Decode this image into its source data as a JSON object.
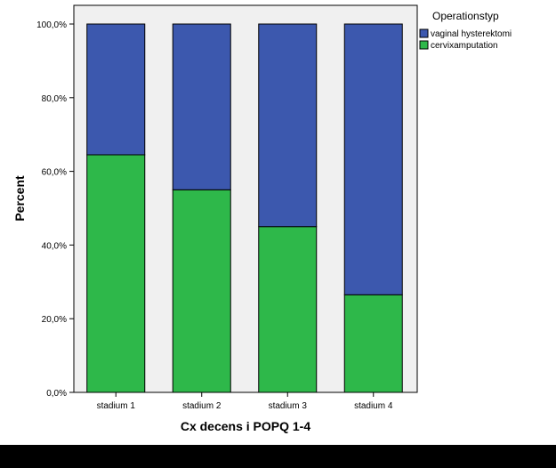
{
  "chart_data": {
    "type": "bar",
    "stacked": true,
    "categories": [
      "stadium 1",
      "stadium 2",
      "stadium 3",
      "stadium 4"
    ],
    "series": [
      {
        "name": "cervixamputation",
        "values": [
          64.5,
          55.0,
          45.0,
          26.5
        ],
        "color": "#2eb84a"
      },
      {
        "name": "vaginal hysterektomi",
        "values": [
          35.5,
          45.0,
          55.0,
          73.5
        ],
        "color": "#3c58ae"
      }
    ],
    "xlabel": "Cx decens i POPQ 1-4",
    "ylabel": "Percent",
    "ylim": [
      0,
      100
    ],
    "yticks": [
      0,
      20,
      40,
      60,
      80,
      100
    ],
    "ytick_labels": [
      "0,0%",
      "20,0%",
      "40,0%",
      "60,0%",
      "80,0%",
      "100,0%"
    ],
    "legend": {
      "title": "Operationstyp",
      "position": "top-right",
      "entries": [
        {
          "label": "vaginal hysterektomi",
          "color": "#3c58ae"
        },
        {
          "label": "cervixamputation",
          "color": "#2eb84a"
        }
      ]
    },
    "plot_background": "#f0f0f0",
    "grid": false
  }
}
